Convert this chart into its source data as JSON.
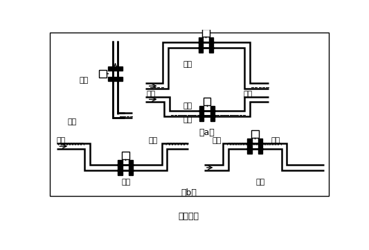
{
  "title": "图（四）",
  "label_a": "（a）",
  "label_b": "（b）",
  "text_correct": "正确",
  "text_wrong": "错误",
  "text_liquid": "液体",
  "text_bubble": "气泡",
  "bg_color": "#ffffff",
  "line_color": "#000000",
  "lw": 1.8,
  "g": 5,
  "fs": 8
}
